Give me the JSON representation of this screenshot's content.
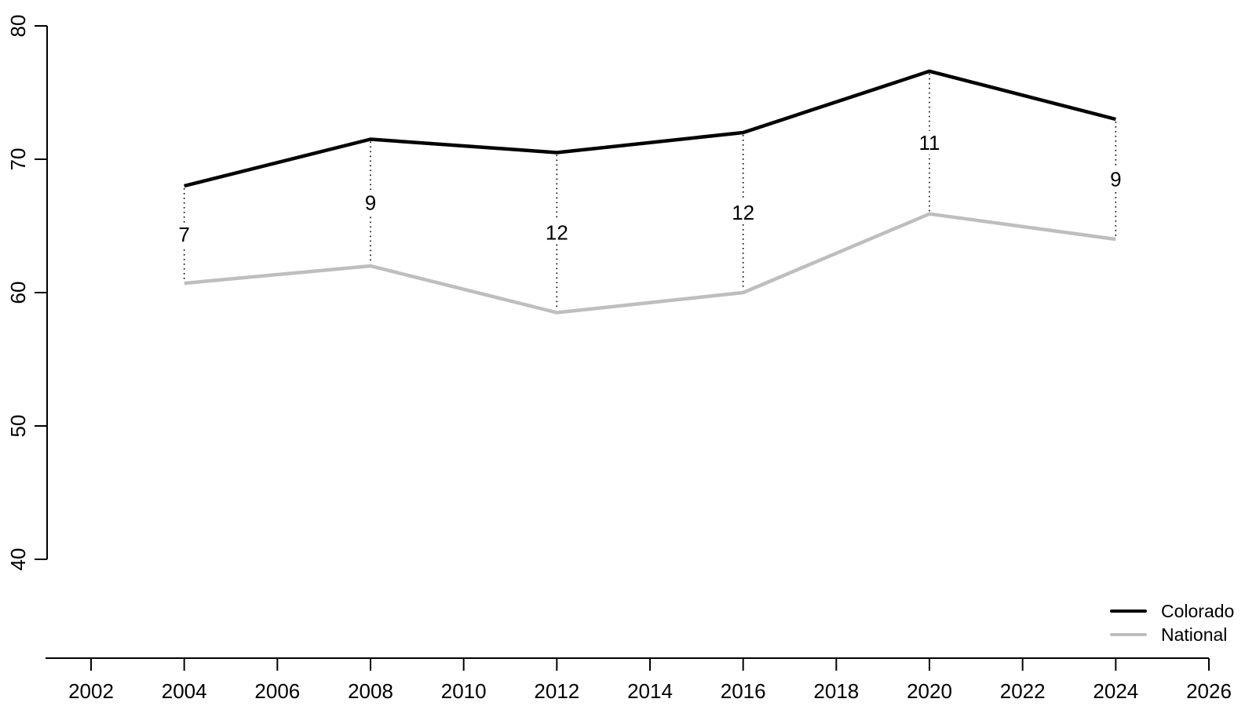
{
  "page": {
    "background": "#FFFFFF"
  },
  "chart_data": {
    "type": "line",
    "title": "",
    "xlabel": "",
    "ylabel": "",
    "x": [
      2004,
      2008,
      2012,
      2016,
      2020,
      2024
    ],
    "series": [
      {
        "name": "Colorado",
        "color": "#000000",
        "values": [
          68.0,
          71.5,
          70.5,
          72.0,
          76.6,
          73.0
        ]
      },
      {
        "name": "National",
        "color": "#BEBEBE",
        "values": [
          60.7,
          62.0,
          58.5,
          60.0,
          65.9,
          64.0
        ]
      }
    ],
    "gap_annotations": [
      {
        "x": 2004,
        "label": "7"
      },
      {
        "x": 2008,
        "label": "9"
      },
      {
        "x": 2012,
        "label": "12"
      },
      {
        "x": 2016,
        "label": "12"
      },
      {
        "x": 2020,
        "label": "11"
      },
      {
        "x": 2024,
        "label": "9"
      }
    ],
    "annotation_line_style": "dotted",
    "xlim": [
      2002,
      2026
    ],
    "ylim": [
      40,
      80
    ],
    "x_ticks": [
      2002,
      2004,
      2006,
      2008,
      2010,
      2012,
      2014,
      2016,
      2018,
      2020,
      2022,
      2024,
      2026
    ],
    "y_ticks": [
      40,
      50,
      60,
      70,
      80
    ],
    "grid": false,
    "axis_color": "#000000",
    "legend": {
      "position": "bottom-right",
      "entries": [
        {
          "label": "Colorado",
          "color": "#000000"
        },
        {
          "label": "National",
          "color": "#BEBEBE"
        }
      ]
    }
  }
}
